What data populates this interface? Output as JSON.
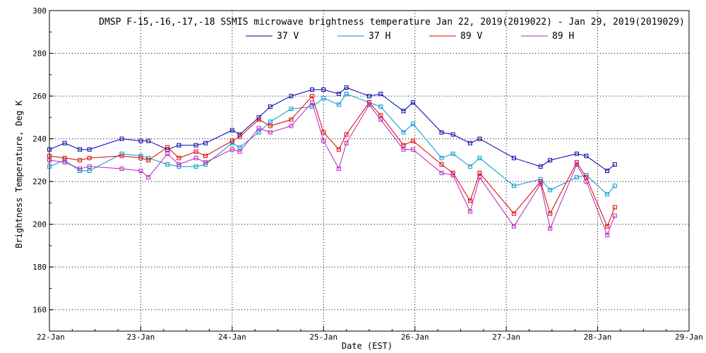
{
  "chart_data": {
    "type": "line",
    "title": "DMSP F-15,-16,-17,-18 SSMIS microwave brightness temperature Jan 22, 2019(2019022) - Jan 29, 2019(2019029)",
    "xlabel": "Date (EST)",
    "ylabel": "Brightness Temperature, Deg K",
    "xlim": [
      "2019-01-22",
      "2019-01-29"
    ],
    "ylim": [
      150,
      300
    ],
    "x_ticks": [
      "22-Jan",
      "23-Jan",
      "24-Jan",
      "25-Jan",
      "26-Jan",
      "27-Jan",
      "28-Jan",
      "29-Jan"
    ],
    "y_ticks": [
      160,
      180,
      200,
      220,
      240,
      260,
      280,
      300
    ],
    "grid": true,
    "legend": "top",
    "series": [
      {
        "name": "37 V",
        "color": "#0000aa",
        "points": [
          [
            "2019-01-22 00:00",
            235
          ],
          [
            "2019-01-22 04:00",
            238
          ],
          [
            "2019-01-22 08:00",
            235
          ],
          [
            "2019-01-22 10:30",
            235
          ],
          [
            "2019-01-22 19:00",
            240
          ],
          [
            "2019-01-23 00:00",
            239
          ],
          [
            "2019-01-23 02:00",
            239
          ],
          [
            "2019-01-23 07:00",
            235
          ],
          [
            "2019-01-23 10:00",
            237
          ],
          [
            "2019-01-23 14:30",
            237
          ],
          [
            "2019-01-23 17:00",
            238
          ],
          [
            "2019-01-24 00:00",
            244
          ],
          [
            "2019-01-24 02:00",
            242
          ],
          [
            "2019-01-24 07:00",
            250
          ],
          [
            "2019-01-24 10:00",
            255
          ],
          [
            "2019-01-24 15:30",
            260
          ],
          [
            "2019-01-24 21:00",
            263
          ],
          [
            "2019-01-25 00:00",
            263
          ],
          [
            "2019-01-25 04:00",
            261
          ],
          [
            "2019-01-25 06:00",
            264
          ],
          [
            "2019-01-25 12:00",
            260
          ],
          [
            "2019-01-25 15:00",
            261
          ],
          [
            "2019-01-25 21:00",
            253
          ],
          [
            "2019-01-25 23:30",
            257
          ],
          [
            "2019-01-26 07:00",
            243
          ],
          [
            "2019-01-26 10:00",
            242
          ],
          [
            "2019-01-26 14:30",
            238
          ],
          [
            "2019-01-26 17:00",
            240
          ],
          [
            "2019-01-27 02:00",
            231
          ],
          [
            "2019-01-27 09:00",
            227
          ],
          [
            "2019-01-27 11:30",
            230
          ],
          [
            "2019-01-27 18:30",
            233
          ],
          [
            "2019-01-27 21:00",
            232
          ],
          [
            "2019-01-28 02:30",
            225
          ],
          [
            "2019-01-28 04:30",
            228
          ]
        ]
      },
      {
        "name": "37 H",
        "color": "#0099cc",
        "points": [
          [
            "2019-01-22 00:00",
            227
          ],
          [
            "2019-01-22 04:00",
            230
          ],
          [
            "2019-01-22 08:00",
            225
          ],
          [
            "2019-01-22 10:30",
            225
          ],
          [
            "2019-01-22 19:00",
            233
          ],
          [
            "2019-01-23 00:00",
            232
          ],
          [
            "2019-01-23 02:00",
            231
          ],
          [
            "2019-01-23 07:00",
            228
          ],
          [
            "2019-01-23 10:00",
            227
          ],
          [
            "2019-01-23 14:30",
            227
          ],
          [
            "2019-01-23 17:00",
            228
          ],
          [
            "2019-01-24 00:00",
            238
          ],
          [
            "2019-01-24 02:00",
            236
          ],
          [
            "2019-01-24 07:00",
            243
          ],
          [
            "2019-01-24 10:00",
            248
          ],
          [
            "2019-01-24 15:30",
            254
          ],
          [
            "2019-01-24 21:00",
            255
          ],
          [
            "2019-01-25 00:00",
            259
          ],
          [
            "2019-01-25 04:00",
            256
          ],
          [
            "2019-01-25 06:00",
            261
          ],
          [
            "2019-01-25 12:00",
            257
          ],
          [
            "2019-01-25 15:00",
            255
          ],
          [
            "2019-01-25 21:00",
            243
          ],
          [
            "2019-01-25 23:30",
            247
          ],
          [
            "2019-01-26 07:00",
            231
          ],
          [
            "2019-01-26 10:00",
            233
          ],
          [
            "2019-01-26 14:30",
            227
          ],
          [
            "2019-01-26 17:00",
            231
          ],
          [
            "2019-01-27 02:00",
            218
          ],
          [
            "2019-01-27 09:00",
            221
          ],
          [
            "2019-01-27 11:30",
            216
          ],
          [
            "2019-01-27 18:30",
            222
          ],
          [
            "2019-01-27 21:00",
            223
          ],
          [
            "2019-01-28 02:30",
            214
          ],
          [
            "2019-01-28 04:30",
            218
          ]
        ]
      },
      {
        "name": "89 V",
        "color": "#dd0000",
        "points": [
          [
            "2019-01-22 00:00",
            232
          ],
          [
            "2019-01-22 04:00",
            231
          ],
          [
            "2019-01-22 08:00",
            230
          ],
          [
            "2019-01-22 10:30",
            231
          ],
          [
            "2019-01-22 19:00",
            232
          ],
          [
            "2019-01-23 00:00",
            231
          ],
          [
            "2019-01-23 02:00",
            230
          ],
          [
            "2019-01-23 07:00",
            236
          ],
          [
            "2019-01-23 10:00",
            231
          ],
          [
            "2019-01-23 14:30",
            234
          ],
          [
            "2019-01-23 17:00",
            232
          ],
          [
            "2019-01-24 00:00",
            239
          ],
          [
            "2019-01-24 02:00",
            241
          ],
          [
            "2019-01-24 07:00",
            249
          ],
          [
            "2019-01-24 10:00",
            246
          ],
          [
            "2019-01-24 15:30",
            249
          ],
          [
            "2019-01-24 21:00",
            260
          ],
          [
            "2019-01-25 00:00",
            243
          ],
          [
            "2019-01-25 04:00",
            235
          ],
          [
            "2019-01-25 06:00",
            242
          ],
          [
            "2019-01-25 12:00",
            257
          ],
          [
            "2019-01-25 15:00",
            251
          ],
          [
            "2019-01-25 21:00",
            237
          ],
          [
            "2019-01-25 23:30",
            239
          ],
          [
            "2019-01-26 07:00",
            228
          ],
          [
            "2019-01-26 10:00",
            224
          ],
          [
            "2019-01-26 14:30",
            211
          ],
          [
            "2019-01-26 17:00",
            224
          ],
          [
            "2019-01-27 02:00",
            205
          ],
          [
            "2019-01-27 09:00",
            220
          ],
          [
            "2019-01-27 11:30",
            205
          ],
          [
            "2019-01-27 18:30",
            229
          ],
          [
            "2019-01-27 21:00",
            222
          ],
          [
            "2019-01-28 02:30",
            199
          ],
          [
            "2019-01-28 04:30",
            208
          ]
        ]
      },
      {
        "name": "89 H",
        "color": "#bb22bb",
        "points": [
          [
            "2019-01-22 00:00",
            230
          ],
          [
            "2019-01-22 04:00",
            229
          ],
          [
            "2019-01-22 08:00",
            226
          ],
          [
            "2019-01-22 10:30",
            227
          ],
          [
            "2019-01-22 19:00",
            226
          ],
          [
            "2019-01-23 00:00",
            225
          ],
          [
            "2019-01-23 02:00",
            222
          ],
          [
            "2019-01-23 07:00",
            233
          ],
          [
            "2019-01-23 10:00",
            228
          ],
          [
            "2019-01-23 14:30",
            231
          ],
          [
            "2019-01-23 17:00",
            229
          ],
          [
            "2019-01-24 00:00",
            235
          ],
          [
            "2019-01-24 02:00",
            234
          ],
          [
            "2019-01-24 07:00",
            245
          ],
          [
            "2019-01-24 10:00",
            243
          ],
          [
            "2019-01-24 15:30",
            246
          ],
          [
            "2019-01-24 21:00",
            257
          ],
          [
            "2019-01-25 00:00",
            239
          ],
          [
            "2019-01-25 04:00",
            226
          ],
          [
            "2019-01-25 06:00",
            238
          ],
          [
            "2019-01-25 12:00",
            256
          ],
          [
            "2019-01-25 15:00",
            249
          ],
          [
            "2019-01-25 21:00",
            235
          ],
          [
            "2019-01-25 23:30",
            235
          ],
          [
            "2019-01-26 07:00",
            224
          ],
          [
            "2019-01-26 10:00",
            223
          ],
          [
            "2019-01-26 14:30",
            206
          ],
          [
            "2019-01-26 17:00",
            222
          ],
          [
            "2019-01-27 02:00",
            199
          ],
          [
            "2019-01-27 09:00",
            219
          ],
          [
            "2019-01-27 11:30",
            198
          ],
          [
            "2019-01-27 18:30",
            228
          ],
          [
            "2019-01-27 21:00",
            220
          ],
          [
            "2019-01-28 02:30",
            195
          ],
          [
            "2019-01-28 04:30",
            204
          ]
        ]
      }
    ]
  }
}
